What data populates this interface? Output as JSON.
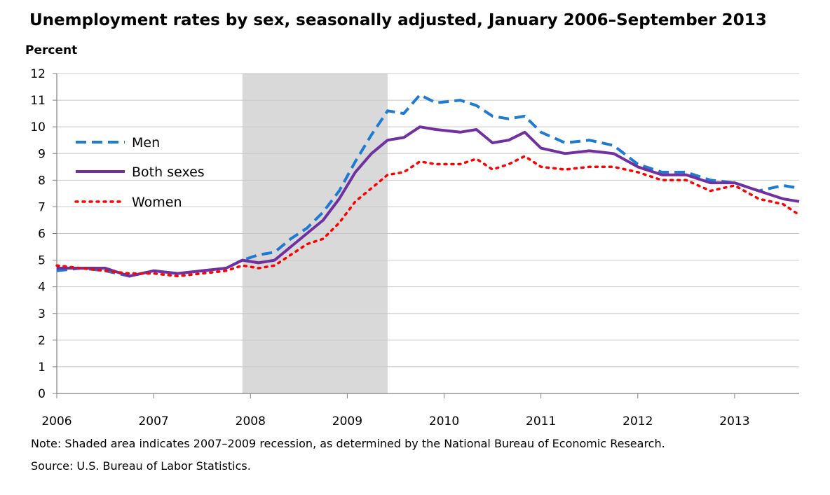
{
  "chart_data": {
    "type": "line",
    "title": "Unemployment rates by sex, seasonally adjusted, January 2006–September 2013",
    "ylabel": "Percent",
    "xlabel": "",
    "ylim": [
      0,
      12
    ],
    "xlim": [
      "2006-01",
      "2013-09"
    ],
    "y_ticks": [
      "0",
      "1",
      "2",
      "3",
      "4",
      "5",
      "6",
      "7",
      "8",
      "9",
      "10",
      "11",
      "12"
    ],
    "x_ticks": [
      "2006",
      "2007",
      "2008",
      "2009",
      "2010",
      "2011",
      "2012",
      "2013"
    ],
    "grid": true,
    "legend": "left",
    "shaded_region": {
      "start": "2007-12",
      "end": "2009-06",
      "color": "#d9d9d9"
    },
    "series": [
      {
        "name": "Men",
        "style": "dashed",
        "color": "#1f7ad1",
        "points": [
          [
            "2006-01",
            4.6
          ],
          [
            "2006-04",
            4.7
          ],
          [
            "2006-07",
            4.6
          ],
          [
            "2006-10",
            4.4
          ],
          [
            "2007-01",
            4.6
          ],
          [
            "2007-04",
            4.5
          ],
          [
            "2007-07",
            4.6
          ],
          [
            "2007-10",
            4.7
          ],
          [
            "2007-12",
            5.0
          ],
          [
            "2008-02",
            5.2
          ],
          [
            "2008-04",
            5.3
          ],
          [
            "2008-06",
            5.8
          ],
          [
            "2008-08",
            6.2
          ],
          [
            "2008-10",
            6.8
          ],
          [
            "2008-12",
            7.6
          ],
          [
            "2009-02",
            8.7
          ],
          [
            "2009-04",
            9.7
          ],
          [
            "2009-06",
            10.6
          ],
          [
            "2009-08",
            10.5
          ],
          [
            "2009-10",
            11.2
          ],
          [
            "2009-12",
            10.9
          ],
          [
            "2010-03",
            11.0
          ],
          [
            "2010-05",
            10.8
          ],
          [
            "2010-07",
            10.4
          ],
          [
            "2010-09",
            10.3
          ],
          [
            "2010-11",
            10.4
          ],
          [
            "2011-01",
            9.8
          ],
          [
            "2011-04",
            9.4
          ],
          [
            "2011-07",
            9.5
          ],
          [
            "2011-10",
            9.3
          ],
          [
            "2012-01",
            8.6
          ],
          [
            "2012-04",
            8.3
          ],
          [
            "2012-07",
            8.3
          ],
          [
            "2012-10",
            8.0
          ],
          [
            "2013-01",
            7.9
          ],
          [
            "2013-04",
            7.6
          ],
          [
            "2013-07",
            7.8
          ],
          [
            "2013-09",
            7.7
          ]
        ]
      },
      {
        "name": "Both sexes",
        "style": "solid",
        "color": "#7030a0",
        "points": [
          [
            "2006-01",
            4.7
          ],
          [
            "2006-04",
            4.7
          ],
          [
            "2006-07",
            4.7
          ],
          [
            "2006-10",
            4.4
          ],
          [
            "2007-01",
            4.6
          ],
          [
            "2007-04",
            4.5
          ],
          [
            "2007-07",
            4.6
          ],
          [
            "2007-10",
            4.7
          ],
          [
            "2007-12",
            5.0
          ],
          [
            "2008-02",
            4.9
          ],
          [
            "2008-04",
            5.0
          ],
          [
            "2008-06",
            5.5
          ],
          [
            "2008-08",
            6.0
          ],
          [
            "2008-10",
            6.5
          ],
          [
            "2008-12",
            7.3
          ],
          [
            "2009-02",
            8.3
          ],
          [
            "2009-04",
            9.0
          ],
          [
            "2009-06",
            9.5
          ],
          [
            "2009-08",
            9.6
          ],
          [
            "2009-10",
            10.0
          ],
          [
            "2009-12",
            9.9
          ],
          [
            "2010-03",
            9.8
          ],
          [
            "2010-05",
            9.9
          ],
          [
            "2010-07",
            9.4
          ],
          [
            "2010-09",
            9.5
          ],
          [
            "2010-11",
            9.8
          ],
          [
            "2011-01",
            9.2
          ],
          [
            "2011-04",
            9.0
          ],
          [
            "2011-07",
            9.1
          ],
          [
            "2011-10",
            9.0
          ],
          [
            "2012-01",
            8.5
          ],
          [
            "2012-04",
            8.2
          ],
          [
            "2012-07",
            8.2
          ],
          [
            "2012-10",
            7.9
          ],
          [
            "2013-01",
            7.9
          ],
          [
            "2013-04",
            7.6
          ],
          [
            "2013-07",
            7.3
          ],
          [
            "2013-09",
            7.2
          ]
        ]
      },
      {
        "name": "Women",
        "style": "dotted",
        "color": "#ff0000",
        "points": [
          [
            "2006-01",
            4.8
          ],
          [
            "2006-04",
            4.7
          ],
          [
            "2006-07",
            4.6
          ],
          [
            "2006-10",
            4.5
          ],
          [
            "2007-01",
            4.5
          ],
          [
            "2007-04",
            4.4
          ],
          [
            "2007-07",
            4.5
          ],
          [
            "2007-10",
            4.6
          ],
          [
            "2007-12",
            4.8
          ],
          [
            "2008-02",
            4.7
          ],
          [
            "2008-04",
            4.8
          ],
          [
            "2008-06",
            5.2
          ],
          [
            "2008-08",
            5.6
          ],
          [
            "2008-10",
            5.8
          ],
          [
            "2008-12",
            6.4
          ],
          [
            "2009-02",
            7.2
          ],
          [
            "2009-04",
            7.7
          ],
          [
            "2009-06",
            8.2
          ],
          [
            "2009-08",
            8.3
          ],
          [
            "2009-10",
            8.7
          ],
          [
            "2009-12",
            8.6
          ],
          [
            "2010-03",
            8.6
          ],
          [
            "2010-05",
            8.8
          ],
          [
            "2010-07",
            8.4
          ],
          [
            "2010-09",
            8.6
          ],
          [
            "2010-11",
            8.9
          ],
          [
            "2011-01",
            8.5
          ],
          [
            "2011-04",
            8.4
          ],
          [
            "2011-07",
            8.5
          ],
          [
            "2011-10",
            8.5
          ],
          [
            "2012-01",
            8.3
          ],
          [
            "2012-04",
            8.0
          ],
          [
            "2012-07",
            8.0
          ],
          [
            "2012-10",
            7.6
          ],
          [
            "2013-01",
            7.8
          ],
          [
            "2013-04",
            7.3
          ],
          [
            "2013-07",
            7.1
          ],
          [
            "2013-09",
            6.7
          ]
        ]
      }
    ]
  },
  "note": "Note: Shaded area indicates 2007–2009 recession, as determined by the National Bureau of Economic Research.",
  "source": "Source: U.S. Bureau of Labor Statistics."
}
